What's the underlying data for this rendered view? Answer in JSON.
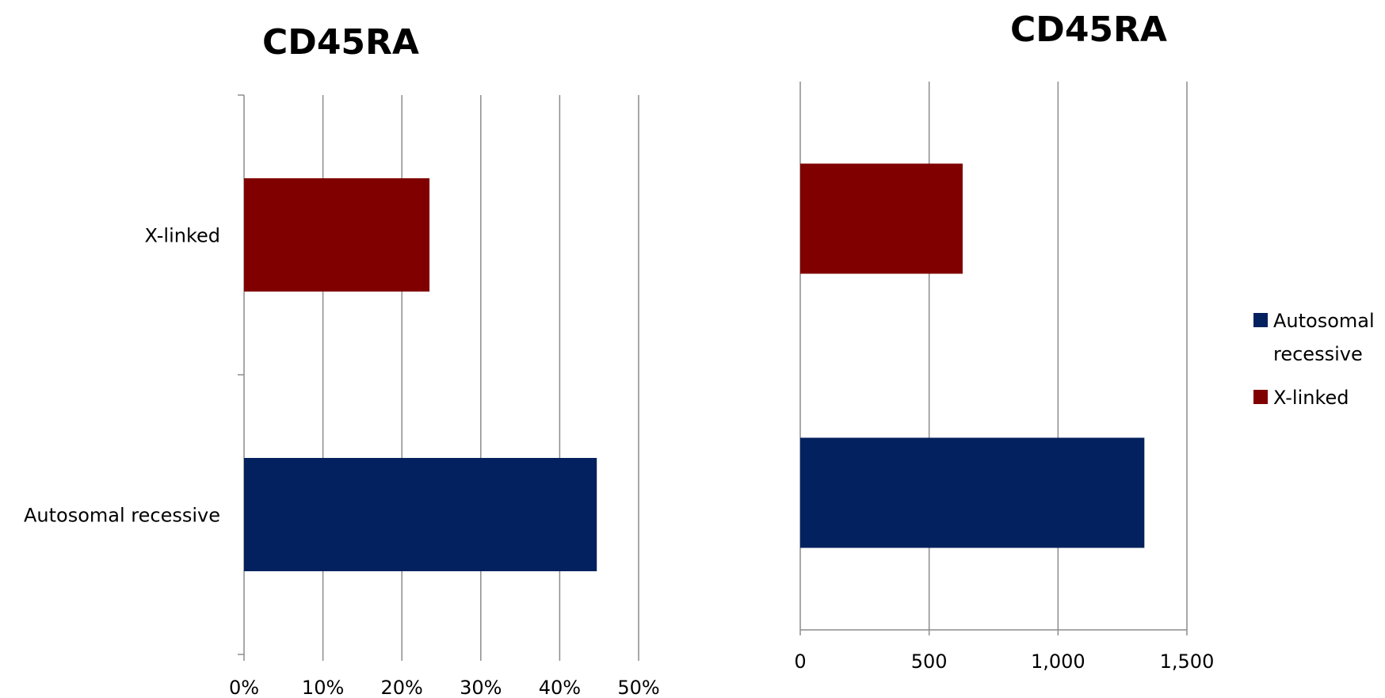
{
  "chart_data": [
    {
      "type": "bar",
      "orientation": "horizontal",
      "title": "CD45RA",
      "categories": [
        "X-linked",
        "Autosomal recessive"
      ],
      "series": [
        {
          "values": [
            23.5,
            44.7
          ],
          "colors": [
            "#800000",
            "#03215e"
          ]
        }
      ],
      "xlim": [
        0,
        50
      ],
      "xticks": [
        "0%",
        "10%",
        "20%",
        "30%",
        "40%",
        "50%"
      ],
      "grid": true,
      "xlabel": "",
      "ylabel": ""
    },
    {
      "type": "bar",
      "orientation": "horizontal",
      "title": "CD45RA",
      "series": [
        {
          "name": "X-linked",
          "values": [
            630
          ],
          "color": "#800000"
        },
        {
          "name": "Autosomal recessive",
          "values": [
            1335
          ],
          "color": "#03215e"
        }
      ],
      "xlim": [
        0,
        1500
      ],
      "xticks": [
        "0",
        "500",
        "1,000",
        "1,500"
      ],
      "grid": true,
      "legend": {
        "position": "right",
        "entries": [
          {
            "label_lines": [
              "Autosomal",
              "recessive"
            ],
            "color": "#03215e"
          },
          {
            "label_lines": [
              "X-linked"
            ],
            "color": "#800000"
          }
        ]
      }
    }
  ]
}
